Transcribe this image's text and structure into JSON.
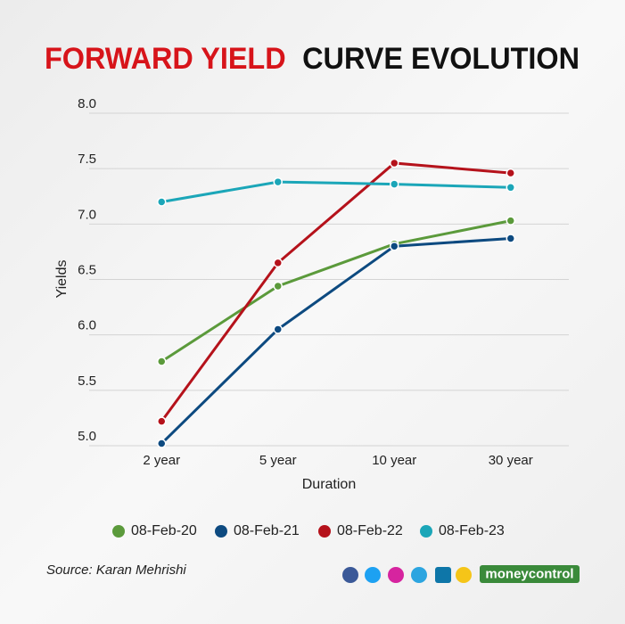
{
  "chart_data": {
    "type": "line",
    "title": [
      "FORWARD YIELD",
      "CURVE EVOLUTION"
    ],
    "title_colors": [
      "#d7141a",
      "#111111"
    ],
    "x_label": "Duration",
    "y_label": "Yields",
    "categories": [
      "2 year",
      "5 year",
      "10 year",
      "30 year"
    ],
    "series": [
      {
        "name": "08-Feb-20",
        "color": "#5b9a3b",
        "values": [
          5.76,
          6.44,
          6.82,
          7.03
        ]
      },
      {
        "name": "08-Feb-21",
        "color": "#0d4a80",
        "values": [
          5.02,
          6.05,
          6.8,
          6.87
        ]
      },
      {
        "name": "08-Feb-22",
        "color": "#b5121b",
        "values": [
          5.22,
          6.65,
          7.55,
          7.46
        ]
      },
      {
        "name": "08-Feb-23",
        "color": "#1ba6b8",
        "values": [
          7.2,
          7.38,
          7.36,
          7.33
        ]
      }
    ],
    "ylim": [
      5,
      8
    ],
    "yticks": [
      {
        "value": 5,
        "label": "5.0"
      },
      {
        "value": 5.5,
        "label": "5.5"
      },
      {
        "value": 6,
        "label": "6.0"
      },
      {
        "value": 6.5,
        "label": "6.5"
      },
      {
        "value": 7,
        "label": "7.0"
      },
      {
        "value": 7.5,
        "label": "7.5"
      },
      {
        "value": 8,
        "label": "8.0"
      }
    ],
    "grid": true,
    "legend": "bottom",
    "source": "Source: Karan Mehrishi",
    "brand": "moneycontrol"
  }
}
